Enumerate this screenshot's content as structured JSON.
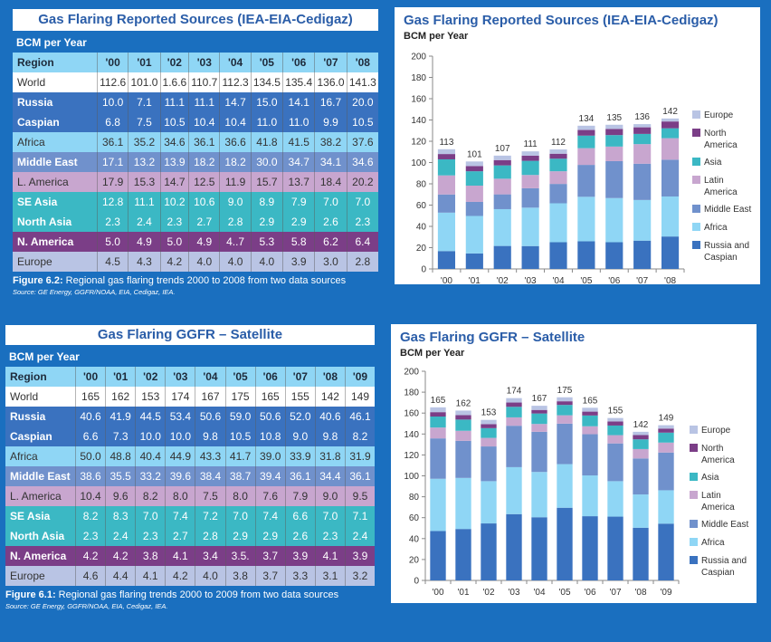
{
  "colors": {
    "russia_caspian": "#3a72bf",
    "africa": "#8fd6f5",
    "middle_east": "#7091cc",
    "latin_america": "#c8a6cf",
    "asia": "#3bb8c4",
    "north_america": "#7b3e87",
    "europe": "#b9c4e4"
  },
  "table_reported": {
    "title": "Gas Flaring Reported Sources (IEA-EIA-Cedigaz)",
    "unit": "BCM per Year",
    "header": [
      "Region",
      "'00",
      "'01",
      "'02",
      "'03",
      "'04",
      "'05",
      "'06",
      "'07",
      "'08"
    ],
    "rows": [
      {
        "cls": "r-world",
        "cells": [
          "World",
          "112.6",
          "101.0",
          "1.6.6",
          "110.7",
          "112.3",
          "134.5",
          "135.4",
          "136.0",
          "141.3"
        ]
      },
      {
        "cls": "r-russia",
        "cells": [
          "Russia",
          "10.0",
          "7.1",
          "11.1",
          "11.1",
          "14.7",
          "15.0",
          "14.1",
          "16.7",
          "20.0"
        ]
      },
      {
        "cls": "r-russia",
        "cells": [
          "Caspian",
          "6.8",
          "7.5",
          "10.5",
          "10.4",
          "10.4",
          "11.0",
          "11.0",
          "9.9",
          "10.5"
        ]
      },
      {
        "cls": "r-africa",
        "cells": [
          "Africa",
          "36.1",
          "35.2",
          "34.6",
          "36.1",
          "36.6",
          "41.8",
          "41.5",
          "38.2",
          "37.6"
        ]
      },
      {
        "cls": "r-me",
        "cells": [
          "Middle East",
          "17.1",
          "13.2",
          "13.9",
          "18.2",
          "18.2",
          "30.0",
          "34.7",
          "34.1",
          "34.6"
        ]
      },
      {
        "cls": "r-la",
        "cells": [
          "L. America",
          "17.9",
          "15.3",
          "14.7",
          "12.5",
          "11.9",
          "15.7",
          "13.7",
          "18.4",
          "20.2"
        ]
      },
      {
        "cls": "r-asia",
        "cells": [
          "SE Asia",
          "12.8",
          "11.1",
          "10.2",
          "10.6",
          "9.0",
          "8.9",
          "7.9",
          "7.0",
          "7.0"
        ]
      },
      {
        "cls": "r-asia",
        "cells": [
          "North Asia",
          "2.3",
          "2.4",
          "2.3",
          "2.7",
          "2.8",
          "2.9",
          "2.9",
          "2.6",
          "2.3"
        ]
      },
      {
        "cls": "r-na",
        "cells": [
          "N. America",
          "5.0",
          "4.9",
          "5.0",
          "4.9",
          "4..7",
          "5.3",
          "5.8",
          "6.2",
          "6.4"
        ]
      },
      {
        "cls": "r-eu",
        "cells": [
          "Europe",
          "4.5",
          "4.3",
          "4.2",
          "4.0",
          "4.0",
          "4.0",
          "3.9",
          "3.0",
          "2.8"
        ]
      }
    ],
    "figure_label": "Figure 6.2:",
    "figure_text": " Regional gas flaring trends 2000 to 2008 from two data sources",
    "source": "Source: GE Energy, GGFR/NOAA, EIA, Cedigaz, IEA."
  },
  "table_satellite": {
    "title": "Gas Flaring GGFR – Satellite",
    "unit": "BCM per Year",
    "header": [
      "Region",
      "'00",
      "'01",
      "'02",
      "'03",
      "'04",
      "'05",
      "'06",
      "'07",
      "'08",
      "'09"
    ],
    "rows": [
      {
        "cls": "r-world",
        "cells": [
          "World",
          "165",
          "162",
          "153",
          "174",
          "167",
          "175",
          "165",
          "155",
          "142",
          "149"
        ]
      },
      {
        "cls": "r-russia",
        "cells": [
          "Russia",
          "40.6",
          "41.9",
          "44.5",
          "53.4",
          "50.6",
          "59.0",
          "50.6",
          "52.0",
          "40.6",
          "46.1"
        ]
      },
      {
        "cls": "r-russia",
        "cells": [
          "Caspian",
          "6.6",
          "7.3",
          "10.0",
          "10.0",
          "9.8",
          "10.5",
          "10.8",
          "9.0",
          "9.8",
          "8.2"
        ]
      },
      {
        "cls": "r-africa",
        "cells": [
          "Africa",
          "50.0",
          "48.8",
          "40.4",
          "44.9",
          "43.3",
          "41.7",
          "39.0",
          "33.9",
          "31.8",
          "31.9"
        ]
      },
      {
        "cls": "r-me",
        "cells": [
          "Middle East",
          "38.6",
          "35.5",
          "33.2",
          "39.6",
          "38.4",
          "38.7",
          "39.4",
          "36.1",
          "34.4",
          "36.1"
        ]
      },
      {
        "cls": "r-la",
        "cells": [
          "L. America",
          "10.4",
          "9.6",
          "8.2",
          "8.0",
          "7.5",
          "8.0",
          "7.6",
          "7.9",
          "9.0",
          "9.5"
        ]
      },
      {
        "cls": "r-asia",
        "cells": [
          "SE Asia",
          "8.2",
          "8.3",
          "7.0",
          "7.4",
          "7.2",
          "7.0",
          "7.4",
          "6.6",
          "7.0",
          "7.1"
        ]
      },
      {
        "cls": "r-asia",
        "cells": [
          "North Asia",
          "2.3",
          "2.4",
          "2.3",
          "2.7",
          "2.8",
          "2.9",
          "2.9",
          "2.6",
          "2.3",
          "2.4"
        ]
      },
      {
        "cls": "r-na",
        "cells": [
          "N. America",
          "4.2",
          "4.2",
          "3.8",
          "4.1",
          "3.4",
          "3.5.",
          "3.7",
          "3.9",
          "4.1",
          "3.9"
        ]
      },
      {
        "cls": "r-eu",
        "cells": [
          "Europe",
          "4.6",
          "4.4",
          "4.1",
          "4.2",
          "4.0",
          "3.8",
          "3.7",
          "3.3",
          "3.1",
          "3.2"
        ]
      }
    ],
    "figure_label": "Figure 6.1:",
    "figure_text": " Regional gas flaring trends 2000 to 2009 from two data sources",
    "source": "Source: GE Energy, GGFR/NOAA, EIA, Cedigaz, IEA."
  },
  "chart_data": [
    {
      "type": "bar",
      "stacked": true,
      "title": "Gas Flaring Reported Sources (IEA-EIA-Cedigaz)",
      "ylabel": "BCM per Year",
      "xlabel": "",
      "ylim": [
        0,
        200
      ],
      "yticks": [
        0,
        20,
        40,
        60,
        80,
        100,
        120,
        140,
        160,
        180,
        200
      ],
      "categories": [
        "'00",
        "'01",
        "'02",
        "'03",
        "'04",
        "'05",
        "'06",
        "'07",
        "'08"
      ],
      "totals_labels": [
        "113",
        "101",
        "107",
        "111",
        "112",
        "134",
        "135",
        "136",
        "142"
      ],
      "legend_position": "right",
      "series": [
        {
          "name": "Russia and Caspian",
          "key": "russia_caspian",
          "values": [
            16.8,
            14.6,
            21.6,
            21.5,
            25.1,
            26.0,
            25.1,
            26.6,
            30.5
          ]
        },
        {
          "name": "Africa",
          "key": "africa",
          "values": [
            36.1,
            35.2,
            34.6,
            36.1,
            36.6,
            41.8,
            41.5,
            38.2,
            37.6
          ]
        },
        {
          "name": "Middle East",
          "key": "middle_east",
          "values": [
            17.1,
            13.2,
            13.9,
            18.2,
            18.2,
            30.0,
            34.7,
            34.1,
            34.6
          ]
        },
        {
          "name": "Latin America",
          "key": "latin_america",
          "values": [
            17.9,
            15.3,
            14.7,
            12.5,
            11.9,
            15.7,
            13.7,
            18.4,
            20.2
          ]
        },
        {
          "name": "Asia",
          "key": "asia",
          "values": [
            15.1,
            13.5,
            12.5,
            13.3,
            11.8,
            11.8,
            10.8,
            9.6,
            9.3
          ]
        },
        {
          "name": "North America",
          "key": "north_america",
          "values": [
            5.0,
            4.9,
            5.0,
            4.9,
            4.7,
            5.3,
            5.8,
            6.2,
            6.4
          ]
        },
        {
          "name": "Europe",
          "key": "europe",
          "values": [
            4.5,
            4.3,
            4.2,
            4.0,
            4.0,
            4.0,
            3.9,
            3.0,
            2.8
          ]
        }
      ]
    },
    {
      "type": "bar",
      "stacked": true,
      "title": "Gas Flaring GGFR – Satellite",
      "ylabel": "BCM per Year",
      "xlabel": "",
      "ylim": [
        0,
        200
      ],
      "yticks": [
        0,
        20,
        40,
        60,
        80,
        100,
        120,
        140,
        160,
        180,
        200
      ],
      "categories": [
        "'00",
        "'01",
        "'02",
        "'03",
        "'04",
        "'05",
        "'06",
        "'07",
        "'08",
        "'09"
      ],
      "totals_labels": [
        "165",
        "162",
        "153",
        "174",
        "167",
        "175",
        "165",
        "155",
        "142",
        "149"
      ],
      "legend_position": "right",
      "series": [
        {
          "name": "Russia and Caspian",
          "key": "russia_caspian",
          "values": [
            47.2,
            49.2,
            54.5,
            63.4,
            60.4,
            69.5,
            61.4,
            61.0,
            50.4,
            54.3
          ]
        },
        {
          "name": "Africa",
          "key": "africa",
          "values": [
            50.0,
            48.8,
            40.4,
            44.9,
            43.3,
            41.7,
            39.0,
            33.9,
            31.8,
            31.9
          ]
        },
        {
          "name": "Middle East",
          "key": "middle_east",
          "values": [
            38.6,
            35.5,
            33.2,
            39.6,
            38.4,
            38.7,
            39.4,
            36.1,
            34.4,
            36.1
          ]
        },
        {
          "name": "Latin America",
          "key": "latin_america",
          "values": [
            10.4,
            9.6,
            8.2,
            8.0,
            7.5,
            8.0,
            7.6,
            7.9,
            9.0,
            9.5
          ]
        },
        {
          "name": "Asia",
          "key": "asia",
          "values": [
            10.5,
            10.7,
            9.3,
            10.1,
            10.0,
            9.9,
            10.3,
            9.2,
            9.3,
            9.5
          ]
        },
        {
          "name": "North America",
          "key": "north_america",
          "values": [
            4.2,
            4.2,
            3.8,
            4.1,
            3.4,
            3.5,
            3.7,
            3.9,
            4.1,
            3.9
          ]
        },
        {
          "name": "Europe",
          "key": "europe",
          "values": [
            4.6,
            4.4,
            4.1,
            4.2,
            4.0,
            3.8,
            3.7,
            3.3,
            3.1,
            3.2
          ]
        }
      ]
    }
  ],
  "legend": [
    {
      "label": "Europe",
      "key": "europe"
    },
    {
      "label": "North America",
      "key": "north_america"
    },
    {
      "label": "Asia",
      "key": "asia"
    },
    {
      "label": "Latin America",
      "key": "latin_america"
    },
    {
      "label": "Middle East",
      "key": "middle_east"
    },
    {
      "label": "Africa",
      "key": "africa"
    },
    {
      "label": "Russia and Caspian",
      "key": "russia_caspian"
    }
  ]
}
